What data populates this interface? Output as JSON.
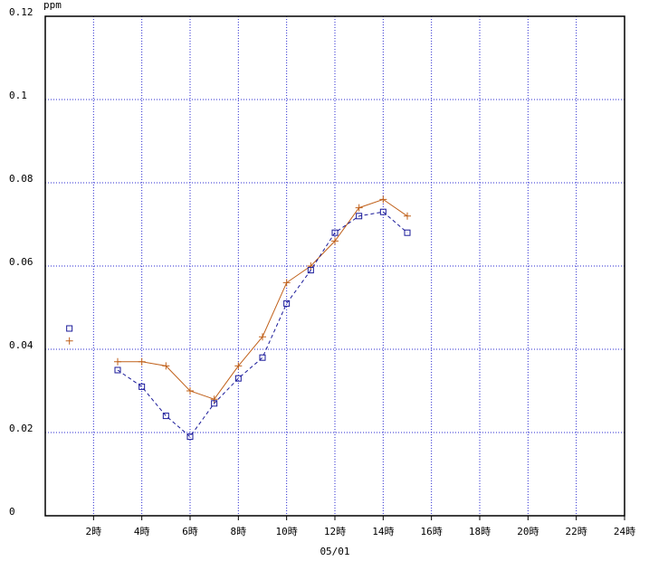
{
  "chart_data": {
    "type": "line",
    "y_unit_label": "ppm",
    "x_label": "05/01",
    "x": [
      1,
      2,
      3,
      4,
      5,
      6,
      7,
      8,
      9,
      10,
      11,
      12,
      13,
      14,
      15,
      16,
      17,
      18,
      19,
      20,
      21,
      22,
      23,
      24
    ],
    "series": [
      {
        "color": "#c0601a",
        "dash": false,
        "marker": "plus",
        "values": [
          0.042,
          null,
          0.037,
          0.037,
          0.036,
          0.03,
          0.028,
          0.036,
          0.043,
          0.056,
          0.06,
          0.066,
          0.074,
          0.076,
          0.072,
          null,
          null,
          null,
          null,
          null,
          null,
          null,
          null,
          null
        ]
      },
      {
        "color": "#1a1a9a",
        "dash": true,
        "marker": "square",
        "values": [
          0.045,
          null,
          0.035,
          0.031,
          0.024,
          0.019,
          0.027,
          0.033,
          0.038,
          0.051,
          0.059,
          0.068,
          0.072,
          0.073,
          0.068,
          null,
          null,
          null,
          null,
          null,
          null,
          null,
          null,
          null
        ]
      }
    ],
    "xlim": [
      0,
      24
    ],
    "xticks": [
      {
        "value": 2,
        "label": "2時"
      },
      {
        "value": 4,
        "label": "4時"
      },
      {
        "value": 6,
        "label": "6時"
      },
      {
        "value": 8,
        "label": "8時"
      },
      {
        "value": 10,
        "label": "10時"
      },
      {
        "value": 12,
        "label": "12時"
      },
      {
        "value": 14,
        "label": "14時"
      },
      {
        "value": 16,
        "label": "16時"
      },
      {
        "value": 18,
        "label": "18時"
      },
      {
        "value": 20,
        "label": "20時"
      },
      {
        "value": 22,
        "label": "22時"
      },
      {
        "value": 24,
        "label": "24時"
      }
    ],
    "ylim": [
      0,
      0.12
    ],
    "yticks": [
      0,
      0.02,
      0.04,
      0.06,
      0.08,
      0.1,
      0.12
    ],
    "grid": true
  }
}
